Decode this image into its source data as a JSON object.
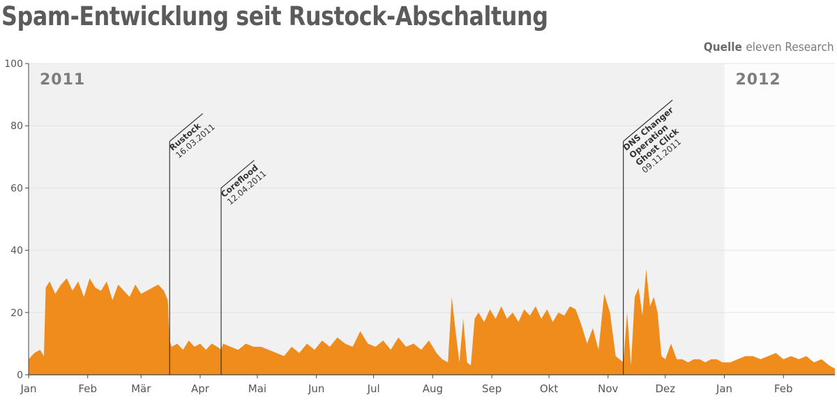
{
  "title": "Spam-Entwicklung seit Rustock-Abschaltung",
  "source": {
    "label": "Quelle",
    "value": "eleven Research"
  },
  "colors": {
    "area": "#ef8c1c",
    "shade_2011": "#f1f1f1",
    "shade_2012": "#fcfcfc",
    "grid": "#e2e2e2",
    "axis": "#444444",
    "text": "#555555",
    "year_text": "#7d7d7d"
  },
  "chart_data": {
    "type": "area",
    "xlabel": "",
    "ylabel": "",
    "ylim": [
      0,
      100
    ],
    "yticks": [
      0,
      20,
      40,
      60,
      80,
      100
    ],
    "grid": true,
    "periods": [
      {
        "label": "2011",
        "from": "2011-01-01",
        "to": "2012-01-01"
      },
      {
        "label": "2012",
        "from": "2012-01-01",
        "to": "2012-03-01"
      }
    ],
    "xticks": [
      {
        "date": "2011-01-01",
        "label": "Jan"
      },
      {
        "date": "2011-02-01",
        "label": "Feb"
      },
      {
        "date": "2011-03-01",
        "label": "Mär"
      },
      {
        "date": "2011-04-01",
        "label": "Apr"
      },
      {
        "date": "2011-05-01",
        "label": "Mai"
      },
      {
        "date": "2011-06-01",
        "label": "Jun"
      },
      {
        "date": "2011-07-01",
        "label": "Jul"
      },
      {
        "date": "2011-08-01",
        "label": "Aug"
      },
      {
        "date": "2011-09-01",
        "label": "Sep"
      },
      {
        "date": "2011-10-01",
        "label": "Okt"
      },
      {
        "date": "2011-11-01",
        "label": "Nov"
      },
      {
        "date": "2011-12-01",
        "label": "Dez"
      },
      {
        "date": "2012-01-01",
        "label": "Jan"
      },
      {
        "date": "2012-02-01",
        "label": "Feb"
      }
    ],
    "events": [
      {
        "date": "2011-03-16",
        "lines": [
          "Rustock",
          "16.03.2011"
        ],
        "top": 75
      },
      {
        "date": "2011-04-12",
        "lines": [
          "Coreflood",
          "12.04.2011"
        ],
        "top": 60
      },
      {
        "date": "2011-11-09",
        "lines": [
          "DNS Changer",
          "Operation",
          "Ghost Click",
          "09.11.2011"
        ],
        "top": 75
      }
    ],
    "series": [
      {
        "name": "",
        "x": [
          "2011-01-01",
          "2011-01-04",
          "2011-01-07",
          "2011-01-09",
          "2011-01-10",
          "2011-01-12",
          "2011-01-15",
          "2011-01-18",
          "2011-01-21",
          "2011-01-24",
          "2011-01-27",
          "2011-01-30",
          "2011-02-02",
          "2011-02-05",
          "2011-02-08",
          "2011-02-11",
          "2011-02-14",
          "2011-02-17",
          "2011-02-20",
          "2011-02-23",
          "2011-02-26",
          "2011-03-01",
          "2011-03-04",
          "2011-03-07",
          "2011-03-10",
          "2011-03-13",
          "2011-03-15",
          "2011-03-16",
          "2011-03-17",
          "2011-03-20",
          "2011-03-23",
          "2011-03-26",
          "2011-03-29",
          "2011-04-01",
          "2011-04-04",
          "2011-04-07",
          "2011-04-10",
          "2011-04-12",
          "2011-04-13",
          "2011-04-17",
          "2011-04-21",
          "2011-04-25",
          "2011-04-29",
          "2011-05-03",
          "2011-05-07",
          "2011-05-11",
          "2011-05-15",
          "2011-05-19",
          "2011-05-23",
          "2011-05-27",
          "2011-05-31",
          "2011-06-04",
          "2011-06-08",
          "2011-06-12",
          "2011-06-16",
          "2011-06-20",
          "2011-06-24",
          "2011-06-28",
          "2011-07-02",
          "2011-07-06",
          "2011-07-10",
          "2011-07-14",
          "2011-07-18",
          "2011-07-22",
          "2011-07-26",
          "2011-07-30",
          "2011-08-03",
          "2011-08-06",
          "2011-08-09",
          "2011-08-11",
          "2011-08-13",
          "2011-08-15",
          "2011-08-17",
          "2011-08-19",
          "2011-08-21",
          "2011-08-23",
          "2011-08-25",
          "2011-08-28",
          "2011-08-31",
          "2011-09-03",
          "2011-09-06",
          "2011-09-09",
          "2011-09-12",
          "2011-09-15",
          "2011-09-18",
          "2011-09-21",
          "2011-09-24",
          "2011-09-27",
          "2011-09-30",
          "2011-10-03",
          "2011-10-06",
          "2011-10-09",
          "2011-10-12",
          "2011-10-15",
          "2011-10-18",
          "2011-10-21",
          "2011-10-24",
          "2011-10-27",
          "2011-10-30",
          "2011-11-02",
          "2011-11-05",
          "2011-11-07",
          "2011-11-09",
          "2011-11-11",
          "2011-11-13",
          "2011-11-15",
          "2011-11-17",
          "2011-11-19",
          "2011-11-21",
          "2011-11-23",
          "2011-11-25",
          "2011-11-27",
          "2011-11-29",
          "2011-12-01",
          "2011-12-04",
          "2011-12-07",
          "2011-12-10",
          "2011-12-13",
          "2011-12-16",
          "2011-12-19",
          "2011-12-22",
          "2011-12-25",
          "2011-12-28",
          "2011-12-31",
          "2012-01-04",
          "2012-01-08",
          "2012-01-12",
          "2012-01-16",
          "2012-01-20",
          "2012-01-24",
          "2012-01-28",
          "2012-02-01",
          "2012-02-05",
          "2012-02-09",
          "2012-02-13",
          "2012-02-17",
          "2012-02-21",
          "2012-02-25",
          "2012-02-28"
        ],
        "y": [
          5,
          7,
          8,
          6,
          28,
          30,
          26,
          29,
          31,
          27,
          30,
          25,
          31,
          28,
          27,
          30,
          24,
          29,
          27,
          25,
          29,
          26,
          27,
          28,
          29,
          27,
          24,
          11,
          9,
          10,
          8,
          11,
          9,
          10,
          8,
          10,
          9,
          8,
          10,
          9,
          8,
          10,
          9,
          9,
          8,
          7,
          6,
          9,
          7,
          10,
          8,
          11,
          9,
          12,
          10,
          9,
          14,
          10,
          9,
          11,
          8,
          12,
          9,
          10,
          8,
          11,
          7,
          5,
          4,
          25,
          14,
          4,
          18,
          4,
          3,
          18,
          20,
          17,
          21,
          18,
          22,
          18,
          20,
          17,
          21,
          19,
          22,
          18,
          21,
          17,
          20,
          19,
          22,
          21,
          16,
          10,
          15,
          8,
          26,
          20,
          6,
          5,
          4,
          20,
          3,
          25,
          28,
          19,
          34,
          22,
          25,
          20,
          6,
          5,
          10,
          5,
          5,
          4,
          5,
          5,
          4,
          5,
          5,
          4,
          4,
          5,
          6,
          6,
          5,
          6,
          7,
          5,
          6,
          5,
          6,
          4,
          5,
          3,
          2
        ]
      }
    ]
  }
}
